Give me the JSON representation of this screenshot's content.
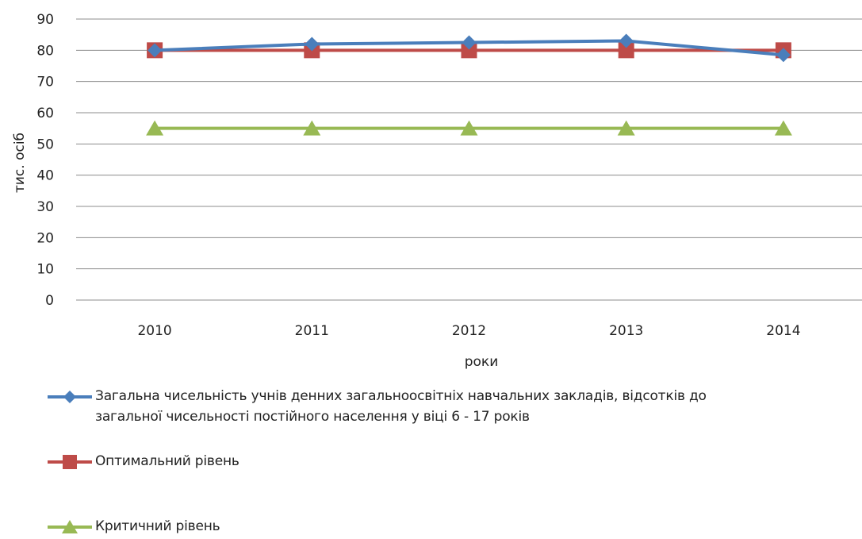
{
  "chart_data": {
    "type": "line",
    "title": "",
    "xlabel": "роки",
    "ylabel": "тис. осіб",
    "categories": [
      "2010",
      "2011",
      "2012",
      "2013",
      "2014"
    ],
    "ylim": [
      0,
      90
    ],
    "yticks": [
      "0",
      "10",
      "20",
      "30",
      "40",
      "50",
      "60",
      "70",
      "80",
      "90"
    ],
    "grid": true,
    "legend_position": "bottom",
    "series": [
      {
        "name_line1": "Загальна чисельність учнів денних загальноосвітніх навчальних закладів, відсотків до",
        "name_line2": "загальної чисельності постійного населення у віці 6 - 17 років",
        "values": [
          80,
          82,
          82.5,
          83,
          78.5
        ],
        "color": "#4a7ebb",
        "marker": "diamond"
      },
      {
        "name_line1": "Оптимальний рівень",
        "values": [
          80,
          80,
          80,
          80,
          80
        ],
        "color": "#be4b48",
        "marker": "square"
      },
      {
        "name_line1": "Критичний рівень",
        "values": [
          55,
          55,
          55,
          55,
          55
        ],
        "color": "#98b954",
        "marker": "triangle"
      }
    ]
  }
}
